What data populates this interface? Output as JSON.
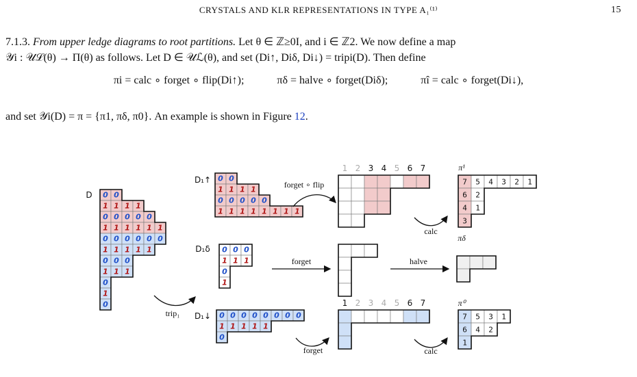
{
  "header": {
    "title": "CRYSTALS AND KLR REPRESENTATIONS IN TYPE A₁⁽¹⁾",
    "page": "15"
  },
  "paragraph": {
    "number": "7.1.3.",
    "heading": "From upper ledge diagrams to root partitions.",
    "line1_rest": "Let θ ∈ ℤ≥0I, and i ∈ ℤ2. We now define a map",
    "line2": "𝒴i : 𝒰ℒ(θ) → Π(θ) as follows. Let D ∈ 𝒰ℒ(θ), and set (Di↑, Diδ, Di↓) = tripi(D). Then define"
  },
  "equations": [
    "πi = calc ∘ forget ∘ flip(Di↑);",
    "πδ = halve ∘ forget(Diδ);",
    "πî = calc ∘ forget(Di↓),"
  ],
  "line_after": {
    "text": "and set 𝒴i(D) = π = {π1, πδ, π0}. An example is shown in Figure ",
    "ref": "12",
    "end": "."
  },
  "figure": {
    "D_label": "D",
    "D_rows": [
      [
        "0",
        "0"
      ],
      [
        "1",
        "1",
        "1",
        "1"
      ],
      [
        "0",
        "0",
        "0",
        "0",
        "0"
      ],
      [
        "1",
        "1",
        "1",
        "1",
        "1",
        "1"
      ],
      [
        "0",
        "0",
        "0",
        "0",
        "0",
        "0"
      ],
      [
        "1",
        "1",
        "1",
        "1",
        "1"
      ],
      [
        "0",
        "0",
        "0"
      ],
      [
        "1",
        "1",
        "1"
      ],
      [
        "0"
      ],
      [
        "1"
      ],
      [
        "0"
      ]
    ],
    "Dup_label": "D₁↑",
    "Dup_rows": [
      [
        "0",
        "0"
      ],
      [
        "1",
        "1",
        "1",
        "1"
      ],
      [
        "0",
        "0",
        "0",
        "0",
        "0"
      ],
      [
        "1",
        "1",
        "1",
        "1",
        "1",
        "1",
        "1",
        "1"
      ]
    ],
    "Ddelta_label": "D₁δ",
    "Ddelta_rows": [
      [
        "0",
        "0",
        "0"
      ],
      [
        "1",
        "1",
        "1"
      ],
      [
        "0"
      ],
      [
        "1"
      ]
    ],
    "Ddown_label": "D₁↓",
    "Ddown_rows": [
      [
        "0",
        "0",
        "0",
        "0",
        "0",
        "0",
        "0",
        "0"
      ],
      [
        "1",
        "1",
        "1",
        "1",
        "1"
      ],
      [
        "0"
      ]
    ],
    "trip_label": "trip₁",
    "forget_flip_label": "forget ∘ flip",
    "forget_label_mid": "forget",
    "forget_label_bottom": "forget",
    "halve_label": "halve",
    "calc_label_top": "calc",
    "calc_label_bottom": "calc",
    "top_col_numbers": [
      "1",
      "2",
      "3",
      "4",
      "5",
      "6",
      "7"
    ],
    "top_col_highlight": [
      false,
      false,
      true,
      true,
      false,
      true,
      true
    ],
    "bottom_col_numbers": [
      "1",
      "2",
      "3",
      "4",
      "5",
      "6",
      "7"
    ],
    "bottom_col_highlight": [
      true,
      false,
      false,
      false,
      false,
      true,
      true
    ],
    "pi1_label": "π¹",
    "pi1_rows": [
      [
        "7",
        "5",
        "4",
        "3",
        "2",
        "1"
      ],
      [
        "6",
        "2"
      ],
      [
        "4",
        "1"
      ],
      [
        "3"
      ]
    ],
    "pidelta_label": "πδ",
    "pi0_label": "π⁰",
    "pi0_rows": [
      [
        "7",
        "5",
        "3",
        "1"
      ],
      [
        "6",
        "4",
        "2"
      ],
      [
        "1"
      ]
    ]
  },
  "colors": {
    "red": "#f2cbcb",
    "blue": "#cfe0f7",
    "grey": "#f0f0f0",
    "red_text": "#b01818",
    "blue_text": "#2050c8",
    "link": "#1a3fbf"
  }
}
